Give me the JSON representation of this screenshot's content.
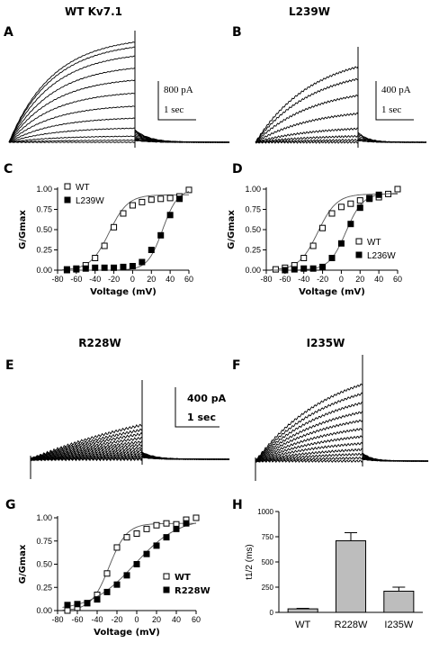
{
  "figure": {
    "panel_letters": {
      "A": "A",
      "B": "B",
      "C": "C",
      "D": "D",
      "E": "E",
      "F": "F",
      "G": "G",
      "H": "H"
    },
    "titles": {
      "A": "WT Kv7.1",
      "B": "L239W",
      "E": "R228W",
      "F": "I235W"
    },
    "scale_bars": {
      "A": {
        "current": "800 pA",
        "time": "1 sec"
      },
      "B": {
        "current": "400 pA",
        "time": "1 sec"
      },
      "E": {
        "current": "400 pA",
        "time": "1 sec"
      }
    }
  },
  "chart_data": [
    {
      "panel": "A",
      "type": "line",
      "description_hidden": false,
      "ylabel": "",
      "xlabel": "",
      "sweeps": [
        0.0,
        0.02,
        0.06,
        0.14,
        0.24,
        0.36,
        0.49,
        0.62,
        0.74,
        0.86,
        0.95,
        1.0
      ]
    },
    {
      "panel": "B",
      "type": "line",
      "ylabel": "",
      "xlabel": "",
      "sweeps": [
        0.0,
        0.03,
        0.08,
        0.18,
        0.38,
        0.62,
        0.84,
        1.0
      ]
    },
    {
      "panel": "C",
      "type": "scatter",
      "xlabel": "Voltage (mV)",
      "ylabel": "G/Gmax",
      "xlim": [
        -80,
        60
      ],
      "ylim": [
        0,
        1
      ],
      "xticks": [
        "-80",
        "-60",
        "-40",
        "-20",
        "0",
        "20",
        "40",
        "60"
      ],
      "yticks": [
        "0.00",
        "0.25",
        "0.50",
        "0.75",
        "1.00"
      ],
      "legend": "top-left",
      "series": [
        {
          "name": "WT",
          "marker": "open-square",
          "x": [
            -70,
            -60,
            -50,
            -40,
            -30,
            -20,
            -10,
            0,
            10,
            20,
            30,
            40,
            50,
            60
          ],
          "y": [
            0.01,
            0.02,
            0.06,
            0.15,
            0.3,
            0.53,
            0.7,
            0.8,
            0.84,
            0.87,
            0.88,
            0.89,
            0.91,
            0.99
          ],
          "fit_v50": -25,
          "fit_k": 10,
          "fit_max": 0.93
        },
        {
          "name": "L239W",
          "marker": "filled-square",
          "x": [
            -70,
            -60,
            -50,
            -40,
            -30,
            -20,
            -10,
            0,
            10,
            20,
            30,
            40,
            50
          ],
          "y": [
            0.0,
            0.01,
            0.02,
            0.03,
            0.03,
            0.03,
            0.04,
            0.05,
            0.1,
            0.25,
            0.43,
            0.68,
            0.88
          ],
          "fit_v50": 32,
          "fit_k": 8,
          "fit_max": 1.0
        }
      ]
    },
    {
      "panel": "D",
      "type": "scatter",
      "xlabel": "Voltage (mV)",
      "ylabel": "G/Gmax",
      "xlim": [
        -80,
        60
      ],
      "ylim": [
        0,
        1
      ],
      "xticks": [
        "-80",
        "-60",
        "-40",
        "-20",
        "0",
        "20",
        "40",
        "60"
      ],
      "yticks": [
        "0.00",
        "0.25",
        "0.50",
        "0.75",
        "1.00"
      ],
      "legend": "bottom-right",
      "series": [
        {
          "name": "WT",
          "marker": "open-square",
          "x": [
            -70,
            -60,
            -50,
            -40,
            -30,
            -20,
            -10,
            0,
            10,
            20,
            30,
            40,
            50,
            60
          ],
          "y": [
            0.01,
            0.03,
            0.06,
            0.15,
            0.3,
            0.52,
            0.7,
            0.78,
            0.82,
            0.86,
            0.89,
            0.9,
            0.94,
            1.0
          ],
          "fit_v50": -25,
          "fit_k": 10,
          "fit_max": 0.94
        },
        {
          "name": "L236W",
          "marker": "filled-square",
          "x": [
            -60,
            -50,
            -40,
            -30,
            -20,
            -10,
            0,
            10,
            20,
            30,
            40
          ],
          "y": [
            0.0,
            0.01,
            0.02,
            0.02,
            0.04,
            0.15,
            0.33,
            0.57,
            0.77,
            0.88,
            0.93
          ],
          "fit_v50": 5,
          "fit_k": 9,
          "fit_max": 0.95
        }
      ]
    },
    {
      "panel": "E",
      "type": "line",
      "ylabel": "",
      "xlabel": "",
      "sweeps": [
        0.0,
        0.03,
        0.07,
        0.12,
        0.18,
        0.25,
        0.33,
        0.42,
        0.51,
        0.62,
        0.74,
        0.86,
        1.0
      ]
    },
    {
      "panel": "F",
      "type": "line",
      "ylabel": "",
      "xlabel": "",
      "sweeps": [
        0.0,
        0.04,
        0.09,
        0.15,
        0.23,
        0.32,
        0.42,
        0.53,
        0.64,
        0.76,
        0.88,
        1.0
      ]
    },
    {
      "panel": "G",
      "type": "scatter",
      "xlabel": "Voltage (mV)",
      "ylabel": "G/Gmax",
      "xlim": [
        -80,
        60
      ],
      "ylim": [
        0,
        1
      ],
      "xticks": [
        "-80",
        "-60",
        "-40",
        "-20",
        "0",
        "20",
        "40",
        "60"
      ],
      "yticks": [
        "0.00",
        "0.25",
        "0.50",
        "0.75",
        "1.00"
      ],
      "legend": "bottom-right",
      "series": [
        {
          "name": "WT",
          "marker": "open-square",
          "x": [
            -70,
            -60,
            -50,
            -40,
            -30,
            -20,
            -10,
            0,
            10,
            20,
            30,
            40,
            50,
            60
          ],
          "y": [
            0.0,
            0.03,
            0.08,
            0.17,
            0.4,
            0.68,
            0.79,
            0.83,
            0.88,
            0.92,
            0.94,
            0.93,
            0.98,
            1.0
          ],
          "fit_v50": -28,
          "fit_k": 9,
          "fit_max": 0.94
        },
        {
          "name": "R228W",
          "marker": "filled-square",
          "x": [
            -70,
            -60,
            -50,
            -40,
            -30,
            -20,
            -10,
            0,
            10,
            20,
            30,
            40,
            50
          ],
          "y": [
            0.06,
            0.07,
            0.08,
            0.12,
            0.2,
            0.28,
            0.38,
            0.5,
            0.61,
            0.7,
            0.79,
            0.88,
            0.94
          ],
          "fit_v50": -2,
          "fit_k": 22,
          "fit_max": 1.0
        }
      ]
    },
    {
      "panel": "H",
      "type": "bar",
      "ylabel": "t1/2 (ms)",
      "ylim": [
        0,
        1000
      ],
      "yticks": [
        "0",
        "250",
        "500",
        "750",
        "1000"
      ],
      "categories": [
        "WT",
        "R228W",
        "I235W"
      ],
      "values": [
        35,
        710,
        210
      ],
      "errors": [
        5,
        80,
        40
      ]
    }
  ]
}
